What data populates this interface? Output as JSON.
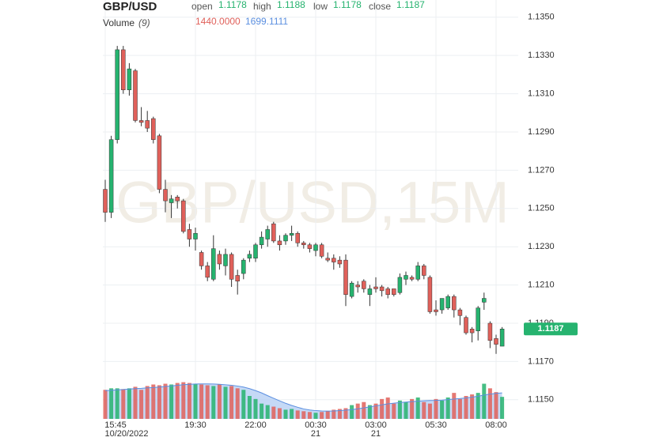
{
  "chart_data": {
    "type": "candlestick",
    "symbol": "GBP/USD",
    "watermark": "GBP/USD,15M",
    "header": {
      "open_label": "open",
      "open": "1.1178",
      "high_label": "high",
      "high": "1.1188",
      "low_label": "low",
      "low": "1.1178",
      "close_label": "close",
      "close": "1.1187",
      "volume_label": "Volume",
      "volume_period": "(9)",
      "volume": "1440.0000",
      "volume_ma": "1699.1111"
    },
    "up_color": "#26b36f",
    "down_color": "#e0605a",
    "ma_color": "#5b8fe0",
    "ma_fill": "#b7d0f4",
    "categories": [
      "15:45",
      null,
      null,
      null,
      null,
      null,
      null,
      null,
      null,
      null,
      null,
      null,
      null,
      null,
      null,
      "19:30",
      null,
      null,
      null,
      null,
      null,
      null,
      null,
      null,
      null,
      "22:00",
      null,
      null,
      null,
      null,
      null,
      null,
      null,
      null,
      null,
      "00:30",
      null,
      null,
      null,
      null,
      null,
      null,
      null,
      null,
      null,
      "03:00",
      null,
      null,
      null,
      null,
      null,
      null,
      null,
      null,
      null,
      "05:30",
      null,
      null,
      null,
      null,
      null,
      null,
      null,
      null,
      null,
      "08:00",
      null
    ],
    "category_dates": [
      "10/20/2022",
      null,
      null,
      null,
      null,
      null,
      null,
      null,
      null,
      null,
      null,
      null,
      null,
      null,
      null,
      null,
      null,
      null,
      null,
      null,
      null,
      null,
      null,
      null,
      null,
      null,
      null,
      null,
      null,
      null,
      null,
      null,
      null,
      null,
      null,
      "21",
      null,
      null,
      null,
      null,
      null,
      null,
      null,
      null,
      null,
      "21",
      null,
      null,
      null,
      null,
      null,
      null,
      null,
      null,
      null,
      null,
      null,
      null,
      null,
      null,
      null,
      null,
      null,
      null,
      null,
      null,
      null
    ],
    "open": [
      1.126,
      1.1248,
      1.1286,
      1.1333,
      1.1312,
      1.1322,
      1.1296,
      1.1296,
      1.1297,
      1.1288,
      1.126,
      1.1253,
      1.1256,
      1.1254,
      1.1239,
      1.1234,
      1.1227,
      1.122,
      1.1213,
      1.1226,
      1.122,
      1.1226,
      1.1215,
      1.1216,
      1.1224,
      1.1224,
      1.1231,
      1.1234,
      1.1242,
      1.1233,
      1.1233,
      1.1236,
      1.1237,
      1.1232,
      1.1231,
      1.1228,
      1.1231,
      1.1224,
      1.1224,
      1.1223,
      1.1223,
      1.1204,
      1.121,
      1.1212,
      1.1205,
      1.1209,
      1.1209,
      1.1208,
      1.1208,
      1.1206,
      1.1213,
      1.1214,
      1.1213,
      1.122,
      1.1214,
      1.1197,
      1.1197,
      1.1198,
      1.1204,
      1.1197,
      1.1193,
      1.1187,
      1.1186,
      1.1201,
      1.119,
      1.1182,
      1.1178
    ],
    "high": [
      1.1265,
      1.1288,
      1.1335,
      1.1335,
      1.1326,
      1.1323,
      1.1303,
      1.1301,
      1.1298,
      1.1289,
      1.1265,
      1.1257,
      1.1257,
      1.1255,
      1.1242,
      1.124,
      1.1228,
      1.1222,
      1.1236,
      1.1228,
      1.1229,
      1.1227,
      1.1218,
      1.1224,
      1.1228,
      1.1232,
      1.1238,
      1.1241,
      1.1243,
      1.1236,
      1.1237,
      1.1241,
      1.1238,
      1.1233,
      1.1232,
      1.1232,
      1.1232,
      1.1227,
      1.1226,
      1.1225,
      1.1226,
      1.1212,
      1.1212,
      1.1213,
      1.121,
      1.1214,
      1.121,
      1.1209,
      1.1208,
      1.1216,
      1.1217,
      1.1215,
      1.1222,
      1.1221,
      1.1215,
      1.1202,
      1.1203,
      1.1205,
      1.1205,
      1.1198,
      1.1194,
      1.1188,
      1.1199,
      1.1206,
      1.1191,
      1.1184,
      1.1188
    ],
    "low": [
      1.1243,
      1.1245,
      1.1284,
      1.131,
      1.1309,
      1.1295,
      1.1293,
      1.129,
      1.1284,
      1.1258,
      1.1248,
      1.1245,
      1.125,
      1.1237,
      1.123,
      1.1228,
      1.1218,
      1.1212,
      1.1212,
      1.1218,
      1.1215,
      1.1209,
      1.1205,
      1.1213,
      1.1222,
      1.1222,
      1.1229,
      1.123,
      1.1232,
      1.1228,
      1.1231,
      1.1233,
      1.123,
      1.1229,
      1.1227,
      1.1225,
      1.1224,
      1.1222,
      1.1218,
      1.1219,
      1.1199,
      1.1203,
      1.1206,
      1.1206,
      1.1199,
      1.1206,
      1.1204,
      1.1203,
      1.1204,
      1.1205,
      1.121,
      1.1212,
      1.1212,
      1.1213,
      1.1195,
      1.1194,
      1.1195,
      1.1197,
      1.1193,
      1.1189,
      1.1184,
      1.118,
      1.1181,
      1.1197,
      1.1177,
      1.1174,
      1.1178
    ],
    "close": [
      1.1248,
      1.1286,
      1.1333,
      1.1312,
      1.1323,
      1.1296,
      1.1295,
      1.1292,
      1.1286,
      1.126,
      1.1254,
      1.1255,
      1.1254,
      1.1238,
      1.1234,
      1.1237,
      1.122,
      1.1214,
      1.1229,
      1.1221,
      1.1226,
      1.1213,
      1.1212,
      1.1223,
      1.1226,
      1.1231,
      1.1235,
      1.1239,
      1.1233,
      1.1231,
      1.1236,
      1.1237,
      1.1232,
      1.1231,
      1.1229,
      1.1231,
      1.1225,
      1.1223,
      1.1222,
      1.1221,
      1.1205,
      1.1211,
      1.1209,
      1.1208,
      1.1208,
      1.1208,
      1.1207,
      1.1205,
      1.1205,
      1.1214,
      1.1215,
      1.1213,
      1.122,
      1.1215,
      1.1196,
      1.1196,
      1.1203,
      1.1204,
      1.1197,
      1.1194,
      1.1185,
      1.1185,
      1.1198,
      1.1203,
      1.1181,
      1.1179,
      1.1187
    ],
    "volume": [
      1900,
      2000,
      2000,
      1950,
      2000,
      2100,
      1900,
      2150,
      2250,
      2200,
      2300,
      2250,
      2350,
      2400,
      2350,
      2300,
      2250,
      2200,
      2150,
      2250,
      2100,
      2150,
      2000,
      1900,
      1500,
      1300,
      1000,
      900,
      800,
      700,
      600,
      650,
      550,
      500,
      450,
      400,
      450,
      500,
      600,
      650,
      700,
      900,
      1000,
      1100,
      900,
      1000,
      1300,
      1400,
      1000,
      1200,
      1100,
      1300,
      1400,
      1100,
      1000,
      1300,
      1200,
      1400,
      1700,
      1300,
      1500,
      1600,
      1700,
      2300,
      2000,
      1752,
      1440
    ],
    "volume_ma": [
      1850,
      1870,
      1900,
      1920,
      1950,
      1980,
      2000,
      2030,
      2050,
      2080,
      2120,
      2150,
      2200,
      2240,
      2260,
      2280,
      2290,
      2290,
      2280,
      2260,
      2230,
      2200,
      2150,
      2080,
      1980,
      1850,
      1700,
      1520,
      1350,
      1180,
      1020,
      880,
      760,
      650,
      580,
      540,
      520,
      510,
      520,
      540,
      570,
      610,
      660,
      720,
      790,
      850,
      920,
      980,
      1030,
      1070,
      1100,
      1130,
      1160,
      1180,
      1200,
      1210,
      1230,
      1260,
      1300,
      1330,
      1370,
      1420,
      1480,
      1560,
      1620,
      1670,
      1699.1111
    ],
    "last_price": 1.1187,
    "ylim": [
      1.114,
      1.1359
    ],
    "yticks": [
      {
        "value": 1.135,
        "label": "1.1350"
      },
      {
        "value": 1.133,
        "label": "1.1330"
      },
      {
        "value": 1.131,
        "label": "1.1310"
      },
      {
        "value": 1.129,
        "label": "1.1290"
      },
      {
        "value": 1.127,
        "label": "1.1270"
      },
      {
        "value": 1.125,
        "label": "1.1250"
      },
      {
        "value": 1.123,
        "label": "1.1230"
      },
      {
        "value": 1.121,
        "label": "1.1210"
      },
      {
        "value": 1.119,
        "label": "1.1190"
      },
      {
        "value": 1.117,
        "label": "1.1170"
      },
      {
        "value": 1.115,
        "label": "1.1150"
      }
    ],
    "volume_ylim": [
      0,
      3000
    ],
    "grid": true
  }
}
